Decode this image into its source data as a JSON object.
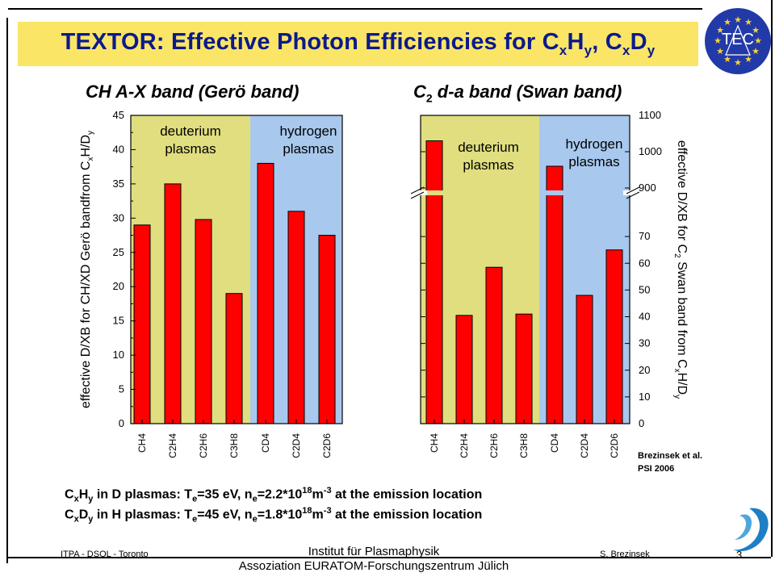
{
  "slide": {
    "title_prefix": "TEXTOR: Effective Photon Efficiencies for C",
    "title_x1": "x",
    "title_h": "H",
    "title_y1": "y",
    "title_comma": ", C",
    "title_x2": "x",
    "title_d": "D",
    "title_y2": "y",
    "logo_text": "TEC",
    "footer_left": "ITPA  - DSOL - Toronto",
    "footer_right": "S. Brezinsek",
    "institute_line1": "Institut für Plasmaphysik",
    "institute_line2": "Assoziation EURATOM-Forschungszentrum Jülich",
    "page_number": "3",
    "reference_line1": "Brezinsek et al.",
    "reference_line2": "PSI 2006",
    "cond1": {
      "c": "C",
      "x": "x",
      "h": "H",
      "y": "y",
      "pre": " in D plasmas: T",
      "e1": "e",
      "mid1": "=35 eV, n",
      "e2": "e",
      "mid2": "=2.2*10",
      "exp1": "18",
      "m": "m",
      "exp2": "-3",
      "post": " at the emission location"
    },
    "cond2": {
      "c": "C",
      "x": "x",
      "h": "D",
      "y": "y",
      "pre": " in H plasmas: T",
      "e1": "e",
      "mid1": "=45 eV, n",
      "e2": "e",
      "mid2": "=1.8*10",
      "exp1": "18",
      "m": "m",
      "exp2": "-3",
      "post": " at the emission location"
    }
  },
  "colors": {
    "title_bg": "#fbe566",
    "title_text": "#0b1a8c",
    "bar": "#ff0000",
    "deuterium_bg": "#e0de7e",
    "hydrogen_bg": "#a8c8ee"
  },
  "chart_data": [
    {
      "type": "bar",
      "title_main": "CH A-X band (Gerö band)",
      "categories": [
        "CH4",
        "C2H4",
        "C2H6",
        "C3H8",
        "CD4",
        "C2D4",
        "C2D6"
      ],
      "values": [
        29,
        35,
        29.8,
        19,
        38,
        31,
        27.5
      ],
      "ylabel": "effective D/XB for CH/XD Gerö bandfrom C",
      "ylabel_sub1": "x",
      "ylabel_mid": "H/D",
      "ylabel_sub2": "y",
      "ylim": [
        0,
        45
      ],
      "yticks": [
        0,
        5,
        10,
        15,
        20,
        25,
        30,
        35,
        40,
        45
      ],
      "regions": [
        {
          "label1": "deuterium",
          "label2": "plasmas",
          "categories": [
            "CH4",
            "C2H4",
            "C2H6",
            "C3H8"
          ]
        },
        {
          "label1": "hydrogen",
          "label2": "plasmas",
          "categories": [
            "CD4",
            "C2D4",
            "C2D6"
          ]
        }
      ]
    },
    {
      "type": "bar",
      "title_c": "C",
      "title_sub": "2",
      "title_rest": " d-a band  (Swan band)",
      "categories": [
        "CH4",
        "C2H4",
        "C2H6",
        "C3H8",
        "CD4",
        "C2D4",
        "C2D6"
      ],
      "values": [
        1030,
        40.5,
        58.5,
        41,
        960,
        48,
        65
      ],
      "broken_axis": {
        "lower": [
          0,
          80
        ],
        "upper": [
          900,
          1100
        ]
      },
      "yticks_lower": [
        0,
        10,
        20,
        30,
        40,
        50,
        60,
        70
      ],
      "yticks_upper": [
        900,
        1000,
        1100
      ],
      "ylabel": "effective D/XB for C",
      "ylabel_sub1": "2",
      "ylabel_mid": " Swan band from C",
      "ylabel_sub2": "x",
      "ylabel_end": "H/D",
      "ylabel_sub3": "y",
      "regions": [
        {
          "label1": "deuterium",
          "label2": "plasmas",
          "categories": [
            "CH4",
            "C2H4",
            "C2H6",
            "C3H8"
          ]
        },
        {
          "label1": "hydrogen",
          "label2": "plasmas",
          "categories": [
            "CD4",
            "C2D4",
            "C2D6"
          ]
        }
      ]
    }
  ]
}
